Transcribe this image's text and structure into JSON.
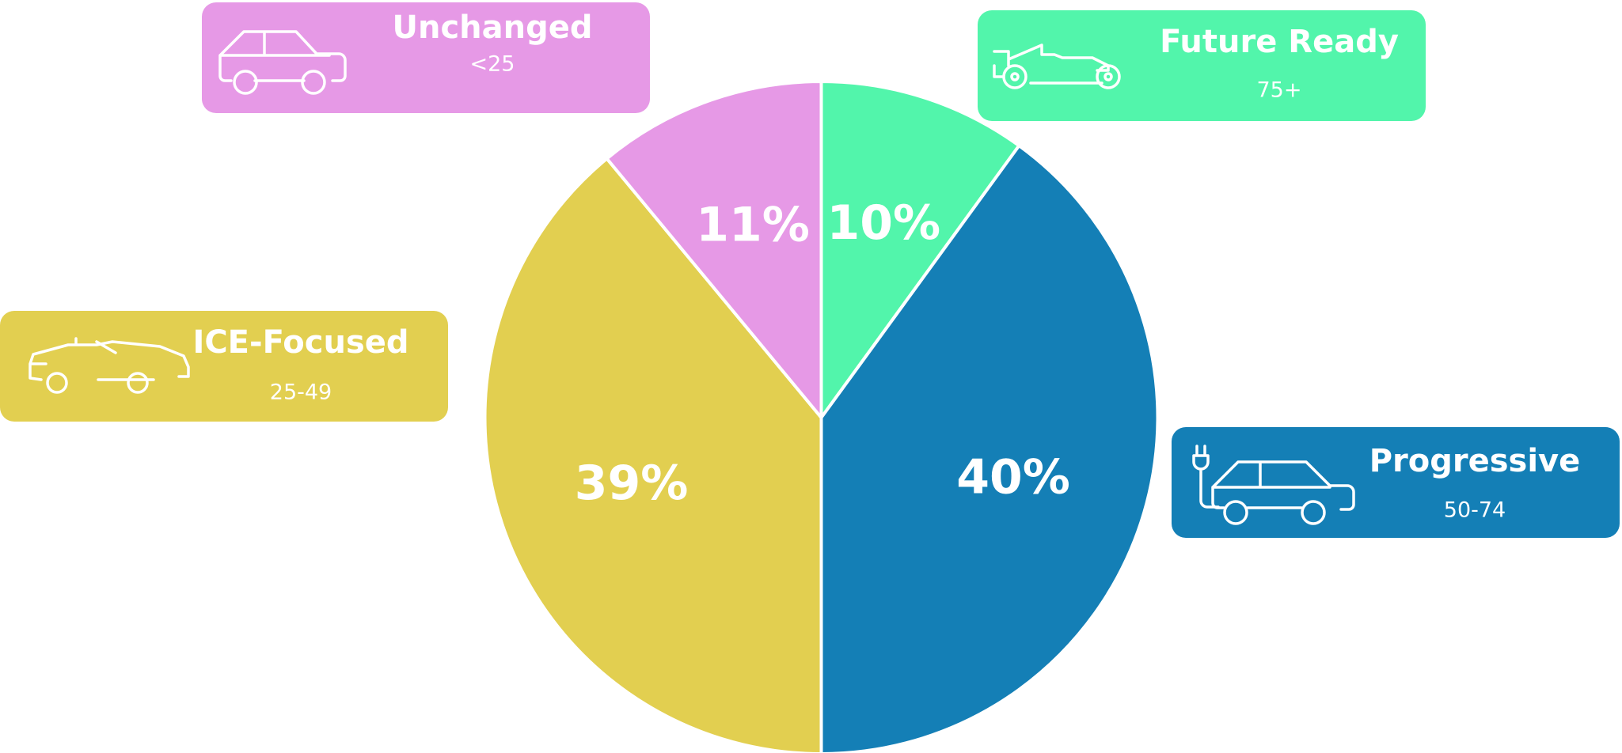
{
  "chart_data": {
    "type": "pie",
    "categories": [
      "Future Ready",
      "Progressive",
      "ICE-Focused",
      "Unchanged"
    ],
    "category_ranges": [
      "75+",
      "50-74",
      "25-49",
      "<25"
    ],
    "values": [
      10,
      40,
      39,
      11
    ],
    "value_labels": [
      "10%",
      "40%",
      "39%",
      "11%"
    ],
    "colors": [
      "#52f5ab",
      "#147fb6",
      "#e2cf50",
      "#e699e6"
    ]
  }
}
